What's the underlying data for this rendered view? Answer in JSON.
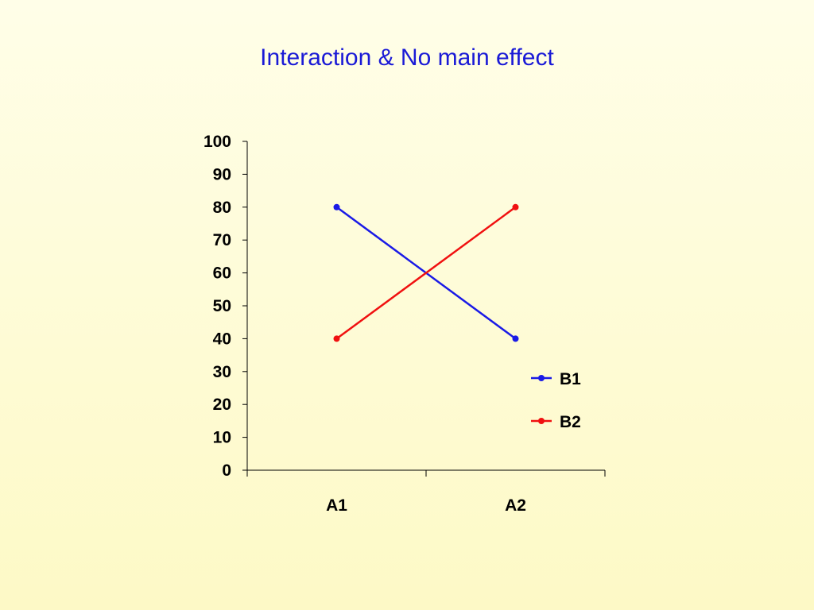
{
  "chart_data": {
    "type": "line",
    "title": "Interaction & No main effect",
    "categories": [
      "A1",
      "A2"
    ],
    "series": [
      {
        "name": "B1",
        "values": [
          80,
          40
        ],
        "color": "#1a1ae6"
      },
      {
        "name": "B2",
        "values": [
          40,
          80
        ],
        "color": "#f01010"
      }
    ],
    "ylim": [
      0,
      100
    ],
    "yticks": [
      0,
      10,
      20,
      30,
      40,
      50,
      60,
      70,
      80,
      90,
      100
    ],
    "xlabel": "",
    "ylabel": "",
    "grid": false,
    "legend": "right"
  }
}
